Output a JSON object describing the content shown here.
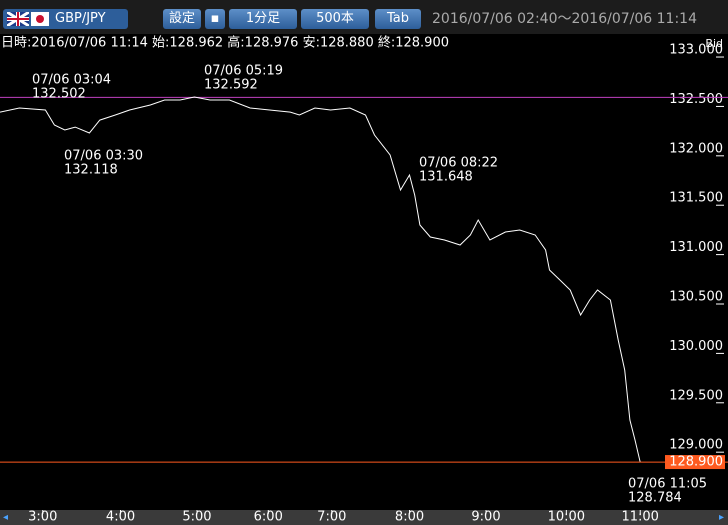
{
  "toolbar": {
    "symbol": "GBP/JPY",
    "settings": "設定",
    "timeframe": "1分足",
    "bars": "500本",
    "tab": "Tab",
    "range": "2016/07/06 02:40～2016/07/06 11:14"
  },
  "chart_data": {
    "type": "line",
    "info": "日時:2016/07/06 11:14 始:128.962 高:128.976 安:128.880 終:128.900",
    "y_label": "Bid",
    "color": "#ffffff",
    "x": [
      0,
      15,
      35,
      42,
      50,
      58,
      69,
      77,
      89,
      100,
      116,
      127,
      139,
      150,
      162,
      177,
      193,
      208,
      224,
      231,
      243,
      255,
      270,
      282,
      289,
      301,
      309,
      316,
      320,
      324,
      332,
      343,
      355,
      363,
      369,
      378,
      390,
      401,
      413,
      421,
      424,
      432,
      440,
      448,
      455,
      461,
      471,
      477,
      482,
      486,
      490,
      494
    ],
    "values": [
      132.443,
      132.484,
      132.464,
      132.312,
      132.261,
      132.291,
      132.231,
      132.362,
      132.413,
      132.464,
      132.514,
      132.565,
      132.565,
      132.595,
      132.565,
      132.565,
      132.484,
      132.464,
      132.443,
      132.413,
      132.484,
      132.464,
      132.484,
      132.413,
      132.211,
      132.008,
      131.654,
      131.806,
      131.603,
      131.3,
      131.178,
      131.148,
      131.097,
      131.198,
      131.35,
      131.148,
      131.229,
      131.249,
      131.198,
      131.047,
      130.844,
      130.743,
      130.642,
      130.389,
      130.54,
      130.642,
      130.54,
      130.136,
      129.832,
      129.326,
      129.123,
      128.9
    ],
    "xlim": [
      0,
      500
    ],
    "ylim": [
      128.435,
      133.223
    ],
    "xticks": [
      {
        "value": 33,
        "label": "3:00"
      },
      {
        "value": 93,
        "label": "4:00"
      },
      {
        "value": 152,
        "label": "5:00"
      },
      {
        "value": 207,
        "label": "6:00"
      },
      {
        "value": 256,
        "label": "7:00"
      },
      {
        "value": 316,
        "label": "8:00"
      },
      {
        "value": 375,
        "label": "9:00"
      },
      {
        "value": 437,
        "label": "10:00"
      },
      {
        "value": 494,
        "label": "11:00"
      }
    ],
    "yticks": [
      {
        "value": 133,
        "label": "133.000"
      },
      {
        "value": 132.5,
        "label": "132.500"
      },
      {
        "value": 132,
        "label": "132.000"
      },
      {
        "value": 131.5,
        "label": "131.500"
      },
      {
        "value": 131,
        "label": "131.000"
      },
      {
        "value": 130.5,
        "label": "130.500"
      },
      {
        "value": 130,
        "label": "130.000"
      },
      {
        "value": 129.5,
        "label": "129.500"
      },
      {
        "value": 129,
        "label": "129.000"
      }
    ],
    "high_line": {
      "value": 132.592,
      "color": "#c040c0"
    },
    "last_price": {
      "value": 128.9,
      "label": "128.900",
      "color": "#ff5a1f"
    },
    "annotations": [
      {
        "time": "07/06 03:04",
        "price": "132.502"
      },
      {
        "time": "07/06 05:19",
        "price": "132.592"
      },
      {
        "time": "07/06 03:30",
        "price": "132.118"
      },
      {
        "time": "07/06 08:22",
        "price": "131.648"
      },
      {
        "time": "07/06 11:05",
        "price": "128.784"
      }
    ]
  }
}
